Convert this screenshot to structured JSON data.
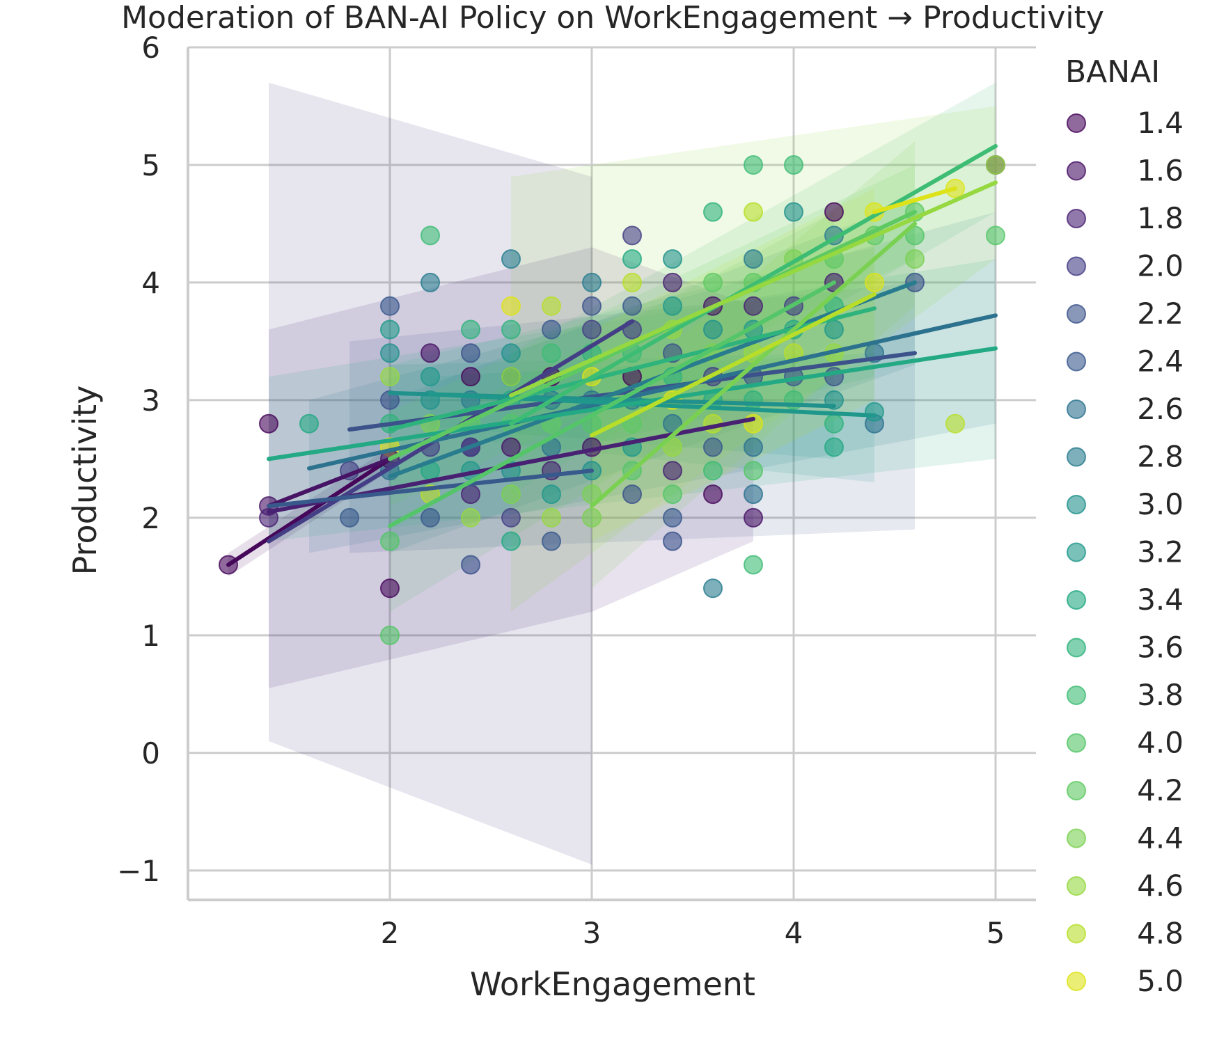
{
  "chart_data": {
    "type": "scatter",
    "title": "Moderation of BAN-AI Policy on WorkEngagement → Productivity",
    "xlabel": "WorkEngagement",
    "ylabel": "Productivity",
    "xlim": [
      1.0,
      5.2
    ],
    "ylim": [
      -1.25,
      6.0
    ],
    "xticks": [
      2,
      3,
      4,
      5
    ],
    "yticks": [
      -1,
      0,
      1,
      2,
      3,
      4,
      5,
      6
    ],
    "ytick_labels": [
      "−1",
      "0",
      "1",
      "2",
      "3",
      "4",
      "5",
      "6"
    ],
    "grid": true,
    "legend": {
      "title": "BANAI",
      "placement": "right-outside"
    },
    "palette": "viridis",
    "series": [
      {
        "name": "1.4",
        "color": "#46075a",
        "points": [
          [
            1.4,
            2.8
          ],
          [
            1.2,
            1.6
          ],
          [
            2.0,
            1.4
          ]
        ],
        "fit": [
          [
            1.2,
            1.6
          ],
          [
            2.0,
            2.5
          ]
        ],
        "band": [
          [
            1.2,
            1.5,
            1.7
          ],
          [
            2.0,
            2.4,
            2.6
          ]
        ]
      },
      {
        "name": "1.6",
        "color": "#471365",
        "points": [
          [
            1.4,
            2.1
          ],
          [
            2.0,
            2.5
          ]
        ],
        "fit": [
          [
            1.4,
            2.1
          ],
          [
            2.0,
            2.5
          ]
        ]
      },
      {
        "name": "1.8",
        "color": "#482173",
        "points": [
          [
            1.4,
            2.0
          ],
          [
            2.4,
            2.2
          ],
          [
            3.4,
            2.4
          ]
        ],
        "fit": [
          [
            1.4,
            2.05
          ],
          [
            3.8,
            2.84
          ]
        ],
        "band": [
          [
            1.4,
            0.55,
            3.6
          ],
          [
            3.0,
            1.2,
            4.3
          ],
          [
            3.8,
            1.8,
            3.8
          ]
        ]
      },
      {
        "name": "2.0",
        "color": "#433e85",
        "points": [
          [
            1.8,
            2.4
          ],
          [
            2.4,
            2.6
          ],
          [
            3.0,
            3.6
          ],
          [
            3.2,
            3.6
          ]
        ],
        "fit": [
          [
            1.4,
            1.8
          ],
          [
            3.2,
            3.67
          ]
        ],
        "band": [
          [
            1.4,
            0.1,
            5.7
          ],
          [
            3.0,
            -0.95,
            4.9
          ]
        ]
      },
      {
        "name": "2.2",
        "color": "#3b528b",
        "points": [
          [
            2.4,
            3.4
          ],
          [
            3.2,
            2.2
          ],
          [
            4.6,
            4.0
          ],
          [
            3.4,
            1.8
          ]
        ],
        "fit": [
          [
            1.8,
            2.75
          ],
          [
            4.6,
            3.4
          ]
        ],
        "band": [
          [
            1.8,
            1.7,
            3.5
          ],
          [
            4.6,
            1.9,
            4.0
          ]
        ]
      },
      {
        "name": "2.4",
        "color": "#38598c",
        "points": [
          [
            1.8,
            2.0
          ],
          [
            2.0,
            3.8
          ],
          [
            2.8,
            1.8
          ],
          [
            3.4,
            2.0
          ]
        ],
        "fit": [
          [
            1.4,
            2.1
          ],
          [
            3.0,
            2.4
          ]
        ]
      },
      {
        "name": "2.6",
        "color": "#2c728e",
        "points": [
          [
            2.8,
            2.6
          ],
          [
            3.8,
            2.2
          ],
          [
            4.4,
            2.8
          ]
        ],
        "fit": [
          [
            1.6,
            2.42
          ],
          [
            5.0,
            3.72
          ]
        ],
        "band": [
          [
            1.6,
            1.7,
            3.0
          ],
          [
            5.0,
            2.8,
            4.6
          ]
        ]
      },
      {
        "name": "2.8",
        "color": "#287c8e",
        "points": [
          [
            2.2,
            4.0
          ],
          [
            2.6,
            4.2
          ],
          [
            3.0,
            4.0
          ],
          [
            3.6,
            1.4
          ]
        ],
        "fit": [
          [
            2.0,
            2.35
          ],
          [
            4.6,
            4.0
          ]
        ],
        "band": [
          [
            2.0,
            1.7,
            3.0
          ],
          [
            4.6,
            3.3,
            4.7
          ]
        ]
      },
      {
        "name": "3.0",
        "color": "#21918c",
        "points": [
          [
            2.0,
            3.4
          ],
          [
            2.6,
            3.4
          ],
          [
            3.4,
            4.2
          ],
          [
            4.2,
            3.0
          ]
        ],
        "fit": [
          [
            2.0,
            3.06
          ],
          [
            4.2,
            2.95
          ]
        ],
        "band": [
          [
            2.0,
            2.8,
            3.3
          ],
          [
            4.2,
            2.5,
            3.4
          ]
        ]
      },
      {
        "name": "3.2",
        "color": "#1f988b",
        "points": [
          [
            2.2,
            3.2
          ],
          [
            3.2,
            2.6
          ],
          [
            4.4,
            2.9
          ]
        ],
        "fit": [
          [
            2.2,
            3.05
          ],
          [
            4.4,
            2.87
          ]
        ],
        "band": [
          [
            2.2,
            2.7,
            3.2
          ],
          [
            4.4,
            2.3,
            3.4
          ]
        ]
      },
      {
        "name": "3.4",
        "color": "#23a983",
        "points": [
          [
            1.6,
            2.8
          ],
          [
            2.6,
            3.0
          ],
          [
            4.2,
            2.6
          ]
        ],
        "fit": [
          [
            1.4,
            2.5
          ],
          [
            5.0,
            3.44
          ]
        ],
        "band": [
          [
            1.4,
            1.8,
            3.2
          ],
          [
            5.0,
            2.5,
            4.2
          ]
        ]
      },
      {
        "name": "3.6",
        "color": "#2eb37c",
        "points": [
          [
            2.6,
            3.6
          ],
          [
            3.6,
            4.6
          ],
          [
            4.2,
            3.8
          ]
        ],
        "fit": [
          [
            2.0,
            2.75
          ],
          [
            4.4,
            3.78
          ]
        ],
        "band": [
          [
            2.0,
            2.2,
            3.3
          ],
          [
            4.4,
            3.2,
            4.3
          ]
        ]
      },
      {
        "name": "3.8",
        "color": "#3dbc74",
        "points": [
          [
            3.8,
            5.0
          ],
          [
            4.0,
            5.0
          ],
          [
            3.8,
            1.6
          ]
        ],
        "fit": [
          [
            2.6,
            2.8
          ],
          [
            5.0,
            5.16
          ]
        ],
        "band": [
          [
            2.6,
            2.2,
            3.4
          ],
          [
            5.0,
            4.6,
            5.7
          ]
        ]
      },
      {
        "name": "4.0",
        "color": "#54c568",
        "points": [
          [
            2.0,
            1.0
          ],
          [
            3.2,
            2.4
          ],
          [
            5.0,
            4.4
          ]
        ],
        "fit": [
          [
            2.0,
            1.93
          ],
          [
            4.2,
            4.0
          ]
        ],
        "band": [
          [
            2.0,
            1.2,
            2.6
          ],
          [
            4.2,
            3.5,
            4.6
          ]
        ]
      },
      {
        "name": "4.2",
        "color": "#5ec962",
        "points": [
          [
            3.6,
            4.0
          ],
          [
            4.4,
            4.4
          ],
          [
            4.6,
            4.6
          ]
        ],
        "fit": [
          [
            2.0,
            2.5
          ],
          [
            4.6,
            4.6
          ]
        ],
        "band": [
          [
            2.0,
            2.1,
            2.9
          ],
          [
            4.6,
            4.2,
            5.0
          ]
        ]
      },
      {
        "name": "4.4",
        "color": "#7ad151",
        "points": [
          [
            3.0,
            2.0
          ],
          [
            4.6,
            4.2
          ]
        ],
        "fit": [
          [
            3.0,
            2.1
          ],
          [
            4.6,
            4.5
          ]
        ],
        "band": [
          [
            3.0,
            1.4,
            2.9
          ],
          [
            4.6,
            3.8,
            5.2
          ]
        ]
      },
      {
        "name": "4.6",
        "color": "#95d840",
        "points": [
          [
            2.6,
            3.2
          ],
          [
            3.4,
            2.6
          ],
          [
            5.0,
            5.0
          ]
        ],
        "fit": [
          [
            2.6,
            3.04
          ],
          [
            5.0,
            4.85
          ]
        ],
        "band": [
          [
            2.6,
            1.2,
            4.9
          ],
          [
            5.0,
            4.2,
            5.5
          ]
        ]
      },
      {
        "name": "4.8",
        "color": "#b8de29",
        "points": [
          [
            3.8,
            4.6
          ],
          [
            4.8,
            2.8
          ]
        ],
        "fit": [
          [
            3.0,
            2.7
          ],
          [
            4.4,
            3.9
          ]
        ],
        "band": [
          [
            3.0,
            1.8,
            3.6
          ],
          [
            4.4,
            3.0,
            4.8
          ]
        ]
      },
      {
        "name": "5.0",
        "color": "#dde318",
        "points": [
          [
            4.4,
            4.6
          ],
          [
            4.8,
            4.8
          ]
        ],
        "fit": [
          [
            4.4,
            4.6
          ],
          [
            4.8,
            4.8
          ]
        ]
      }
    ],
    "background_points": [
      [
        2.0,
        3.6
      ],
      [
        2.0,
        3.2
      ],
      [
        2.0,
        3.0
      ],
      [
        2.0,
        2.8
      ],
      [
        2.0,
        2.6
      ],
      [
        2.0,
        2.4
      ],
      [
        2.0,
        1.8
      ],
      [
        2.2,
        3.4
      ],
      [
        2.2,
        3.0
      ],
      [
        2.2,
        2.8
      ],
      [
        2.2,
        2.6
      ],
      [
        2.2,
        2.4
      ],
      [
        2.2,
        2.2
      ],
      [
        2.2,
        2.0
      ],
      [
        2.2,
        4.4
      ],
      [
        2.4,
        3.2
      ],
      [
        2.4,
        3.0
      ],
      [
        2.4,
        2.8
      ],
      [
        2.4,
        2.6
      ],
      [
        2.4,
        2.4
      ],
      [
        2.4,
        2.0
      ],
      [
        2.4,
        1.6
      ],
      [
        2.4,
        3.6
      ],
      [
        2.6,
        3.8
      ],
      [
        2.6,
        3.2
      ],
      [
        2.6,
        2.8
      ],
      [
        2.6,
        2.6
      ],
      [
        2.6,
        2.4
      ],
      [
        2.6,
        2.2
      ],
      [
        2.6,
        2.0
      ],
      [
        2.6,
        1.8
      ],
      [
        2.8,
        3.8
      ],
      [
        2.8,
        3.6
      ],
      [
        2.8,
        3.4
      ],
      [
        2.8,
        3.2
      ],
      [
        2.8,
        3.0
      ],
      [
        2.8,
        2.8
      ],
      [
        2.8,
        2.4
      ],
      [
        2.8,
        2.2
      ],
      [
        2.8,
        2.0
      ],
      [
        3.0,
        3.8
      ],
      [
        3.0,
        3.4
      ],
      [
        3.0,
        3.2
      ],
      [
        3.0,
        3.0
      ],
      [
        3.0,
        2.8
      ],
      [
        3.0,
        2.6
      ],
      [
        3.0,
        2.4
      ],
      [
        3.0,
        2.2
      ],
      [
        3.2,
        4.4
      ],
      [
        3.2,
        4.2
      ],
      [
        3.2,
        4.0
      ],
      [
        3.2,
        3.8
      ],
      [
        3.2,
        3.4
      ],
      [
        3.2,
        3.2
      ],
      [
        3.2,
        3.0
      ],
      [
        3.2,
        2.8
      ],
      [
        3.4,
        4.0
      ],
      [
        3.4,
        3.8
      ],
      [
        3.4,
        3.6
      ],
      [
        3.4,
        3.4
      ],
      [
        3.4,
        3.2
      ],
      [
        3.4,
        3.0
      ],
      [
        3.4,
        2.8
      ],
      [
        3.4,
        2.2
      ],
      [
        3.6,
        3.8
      ],
      [
        3.6,
        3.6
      ],
      [
        3.6,
        3.4
      ],
      [
        3.6,
        3.2
      ],
      [
        3.6,
        3.0
      ],
      [
        3.6,
        2.8
      ],
      [
        3.6,
        2.6
      ],
      [
        3.6,
        2.4
      ],
      [
        3.6,
        2.2
      ],
      [
        3.8,
        4.2
      ],
      [
        3.8,
        4.0
      ],
      [
        3.8,
        3.8
      ],
      [
        3.8,
        3.6
      ],
      [
        3.8,
        3.4
      ],
      [
        3.8,
        3.2
      ],
      [
        3.8,
        3.0
      ],
      [
        3.8,
        2.8
      ],
      [
        3.8,
        2.6
      ],
      [
        3.8,
        2.4
      ],
      [
        3.8,
        2.0
      ],
      [
        4.0,
        4.6
      ],
      [
        4.0,
        4.2
      ],
      [
        4.0,
        3.8
      ],
      [
        4.0,
        3.6
      ],
      [
        4.0,
        3.4
      ],
      [
        4.0,
        3.2
      ],
      [
        4.0,
        3.0
      ],
      [
        4.2,
        4.6
      ],
      [
        4.2,
        4.4
      ],
      [
        4.2,
        4.2
      ],
      [
        4.2,
        4.0
      ],
      [
        4.2,
        3.6
      ],
      [
        4.2,
        3.4
      ],
      [
        4.2,
        3.2
      ],
      [
        4.2,
        2.8
      ],
      [
        4.4,
        4.0
      ],
      [
        4.4,
        3.4
      ],
      [
        4.6,
        4.4
      ],
      [
        5.0,
        5.0
      ]
    ]
  }
}
